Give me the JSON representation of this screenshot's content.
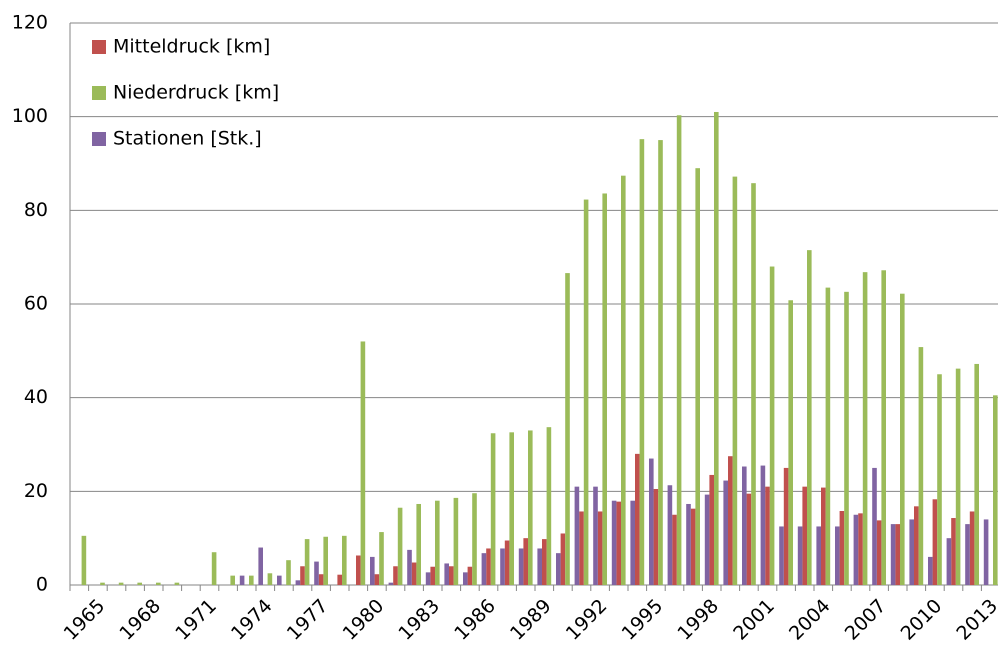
{
  "chart_data": {
    "type": "bar",
    "categories": [
      null,
      "1965",
      null,
      null,
      "1968",
      null,
      null,
      "1971",
      null,
      null,
      "1974",
      null,
      null,
      "1977",
      null,
      null,
      "1980",
      null,
      null,
      "1983",
      null,
      null,
      "1986",
      null,
      null,
      "1989",
      null,
      null,
      "1992",
      null,
      null,
      "1995",
      null,
      null,
      "1998",
      null,
      null,
      "2001",
      null,
      null,
      "2004",
      null,
      null,
      "2007",
      null,
      null,
      "2010",
      null,
      null,
      "2013"
    ],
    "series": [
      {
        "name": "Mitteldruck [km]",
        "color": "#c0504d",
        "values": [
          null,
          null,
          null,
          null,
          null,
          null,
          null,
          null,
          null,
          null,
          null,
          null,
          4,
          2.3,
          2.2,
          6.3,
          2.3,
          4,
          4.8,
          3.9,
          4,
          3.9,
          7.8,
          9.5,
          10,
          9.8,
          11,
          15.7,
          15.7,
          17.8,
          28,
          20.5,
          15,
          16.3,
          23.5,
          27.5,
          19.5,
          21,
          25,
          21,
          20.8,
          15.8,
          15.3,
          13.8,
          13,
          16.8,
          18.3,
          14.3,
          15.7,
          null
        ]
      },
      {
        "name": "Niederdruck [km]",
        "color": "#9bbb59",
        "values": [
          10.5,
          0.5,
          0.5,
          0.5,
          0.5,
          0.5,
          null,
          7,
          2,
          2,
          2.5,
          5.3,
          9.8,
          10.3,
          10.5,
          52,
          11.3,
          16.5,
          17.3,
          18,
          18.6,
          19.6,
          32.4,
          32.6,
          33,
          33.7,
          66.6,
          82.3,
          83.6,
          87.4,
          95.2,
          95,
          100.3,
          89,
          101,
          87.2,
          85.8,
          68,
          60.8,
          71.5,
          63.5,
          62.6,
          66.8,
          67.2,
          62.2,
          50.8,
          45,
          46.2,
          47.2,
          40.5
        ]
      },
      {
        "name": "Stationen [Stk.]",
        "color": "#8064a2",
        "values": [
          null,
          null,
          null,
          null,
          null,
          null,
          null,
          null,
          null,
          2,
          8,
          2,
          1,
          5,
          null,
          null,
          6,
          0.5,
          7.5,
          2.7,
          4.6,
          2.7,
          6.8,
          7.8,
          7.8,
          7.8,
          6.8,
          21,
          21,
          18,
          18,
          27,
          21.3,
          17.3,
          19.3,
          22.3,
          25.3,
          25.5,
          12.5,
          12.5,
          12.5,
          12.5,
          15,
          25,
          13,
          14,
          6,
          10,
          13,
          14
        ]
      }
    ],
    "ylim": [
      0,
      120
    ],
    "yticks": [
      0,
      20,
      40,
      60,
      80,
      100,
      120
    ],
    "grid": true,
    "legend": "top-left"
  }
}
